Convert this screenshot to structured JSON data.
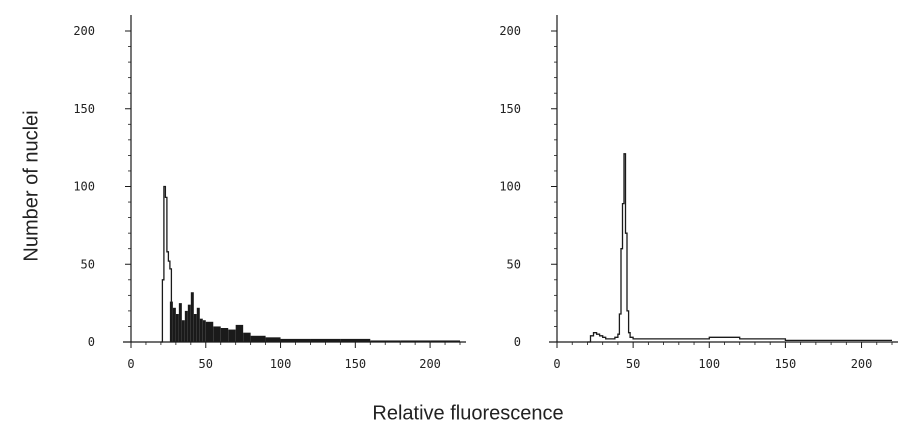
{
  "figure": {
    "ylabel": "Number of nuclei",
    "xlabel": "Relative fluorescence",
    "ink_color": "#1a1a1a"
  },
  "chart_data": [
    {
      "type": "histogram",
      "panel": "left",
      "xlim": [
        0,
        220
      ],
      "ylim": [
        0,
        200
      ],
      "xticks": [
        0,
        50,
        100,
        150,
        200
      ],
      "yticks": [
        0,
        50,
        100,
        150,
        200
      ],
      "grid": false,
      "outline_peak": {
        "x": [
          20,
          21,
          22,
          23,
          24,
          25,
          26,
          27
        ],
        "y": [
          0,
          40,
          100,
          93,
          58,
          52,
          47,
          26
        ]
      },
      "filled_region": {
        "x": [
          26,
          28,
          30,
          32,
          34,
          36,
          38,
          40,
          42,
          44,
          46,
          48,
          50,
          55,
          60,
          65,
          70,
          75,
          80,
          90,
          100,
          120,
          140,
          160,
          180,
          200,
          220
        ],
        "y": [
          26,
          22,
          18,
          25,
          14,
          20,
          24,
          32,
          18,
          22,
          15,
          14,
          13,
          10,
          9,
          8,
          11,
          6,
          4,
          3,
          2,
          2,
          2,
          1,
          1,
          1,
          1
        ]
      }
    },
    {
      "type": "histogram",
      "panel": "right",
      "xlim": [
        0,
        220
      ],
      "ylim": [
        0,
        200
      ],
      "xticks": [
        0,
        50,
        100,
        150,
        200
      ],
      "yticks": [
        0,
        50,
        100,
        150,
        200
      ],
      "grid": false,
      "outline_peak": {
        "x": [
          20,
          22,
          24,
          26,
          28,
          30,
          32,
          34,
          36,
          38,
          40,
          41,
          42,
          43,
          44,
          45,
          46,
          47,
          48,
          50,
          55,
          60,
          70,
          80,
          90,
          100,
          120,
          150,
          180,
          220
        ],
        "y": [
          0,
          4,
          6,
          5,
          4,
          3,
          2,
          2,
          2,
          3,
          5,
          18,
          60,
          89,
          121,
          70,
          20,
          6,
          3,
          2,
          2,
          2,
          2,
          2,
          2,
          3,
          2,
          1,
          1,
          1
        ]
      }
    }
  ]
}
